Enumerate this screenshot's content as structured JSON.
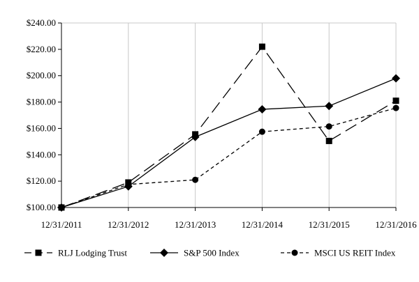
{
  "chart_data": {
    "type": "line",
    "title": "",
    "xlabel": "",
    "ylabel": "",
    "categories": [
      "12/31/2011",
      "12/31/2012",
      "12/31/2013",
      "12/31/2014",
      "12/31/2015",
      "12/31/2016"
    ],
    "ylim": [
      100,
      240
    ],
    "ytick_values": [
      100,
      120,
      140,
      160,
      180,
      200,
      220,
      240
    ],
    "ytick_labels": [
      "$100.00",
      "$120.00",
      "$140.00",
      "$160.00",
      "$180.00",
      "$200.00",
      "$220.00",
      "$240.00"
    ],
    "grid": "vertical",
    "legend_position": "bottom",
    "series": [
      {
        "name": "RLJ Lodging Trust",
        "values": [
          100,
          119,
          155.5,
          222,
          150.5,
          181
        ],
        "marker": "square",
        "line_style": "long-dash",
        "color": "#000000"
      },
      {
        "name": "S&P 500 Index",
        "values": [
          100,
          116,
          153.5,
          174.5,
          177,
          198
        ],
        "marker": "diamond",
        "line_style": "solid",
        "color": "#000000"
      },
      {
        "name": "MSCI US REIT Index",
        "values": [
          100,
          117.5,
          121,
          157.5,
          161.5,
          175.5
        ],
        "marker": "circle",
        "line_style": "short-dash",
        "color": "#000000"
      }
    ]
  }
}
